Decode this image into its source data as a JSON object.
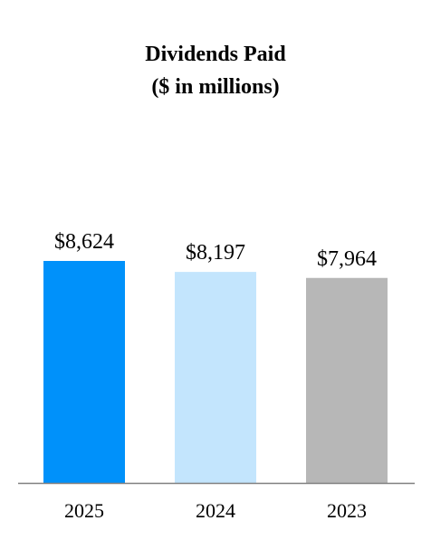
{
  "chart_data": {
    "type": "bar",
    "title": "Dividends Paid",
    "subtitle": "($ in millions)",
    "categories": [
      "2025",
      "2024",
      "2023"
    ],
    "values": [
      8624,
      8197,
      7964
    ],
    "data_labels": [
      "$8,624",
      "$8,197",
      "$7,964"
    ],
    "bar_colors": [
      "#0091FA",
      "#C3E5FD",
      "#B7B7B7"
    ],
    "axis_color": "#808080",
    "xlabel": "",
    "ylabel": "",
    "ylim": [
      0,
      10000
    ],
    "grid": false,
    "legend": "none"
  }
}
